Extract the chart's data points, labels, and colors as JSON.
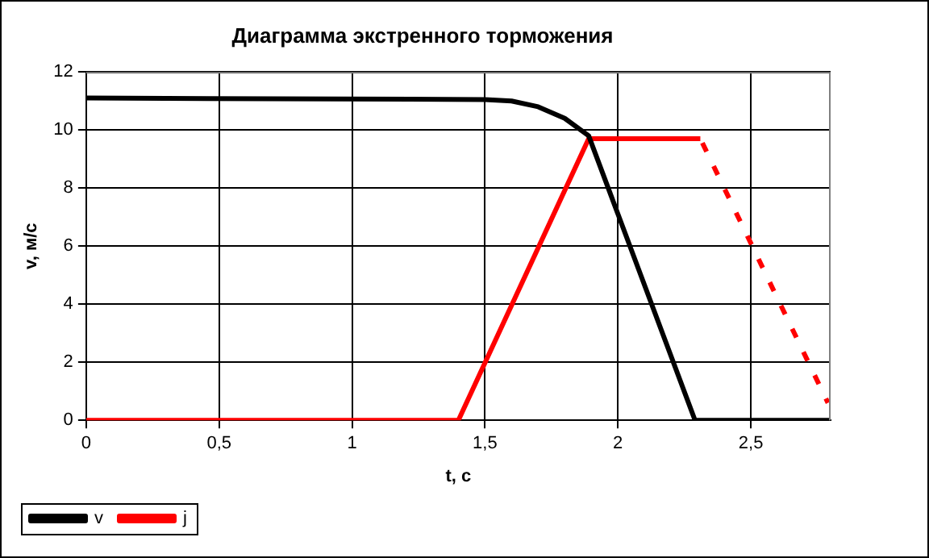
{
  "chart_data": {
    "type": "line",
    "title": "Диаграмма экстренного торможения",
    "xlabel": "t, с",
    "ylabel": "v, м/с",
    "xlim": [
      0,
      2.8
    ],
    "xticks": [
      0,
      {
        "value": 0.5,
        "label": "0,5"
      },
      1,
      {
        "value": 1.5,
        "label": "1,5"
      },
      2,
      {
        "value": 2.5,
        "label": "2,5"
      }
    ],
    "ylim": [
      0,
      12
    ],
    "yticks": [
      0,
      2,
      4,
      6,
      8,
      10,
      12
    ],
    "grid": true,
    "legend": "bottom",
    "marker": "none",
    "series": [
      {
        "name": "v",
        "color": "#000000",
        "line_style": "solid",
        "x": [
          0,
          1.5,
          1.6,
          1.7,
          1.8,
          1.89,
          2.29,
          2.8
        ],
        "values": [
          11.1,
          11.05,
          11.0,
          10.8,
          10.4,
          9.8,
          0,
          0
        ]
      },
      {
        "name": "j",
        "color": "#ff0000",
        "line_style": "solid",
        "x": [
          0,
          1.4,
          1.89,
          2.31
        ],
        "values": [
          0,
          0,
          9.7,
          9.7
        ]
      },
      {
        "color": "#ff0000",
        "line_style": "dashed",
        "x": [
          2.31,
          2.79
        ],
        "values": [
          9.7,
          0.6
        ]
      }
    ]
  }
}
